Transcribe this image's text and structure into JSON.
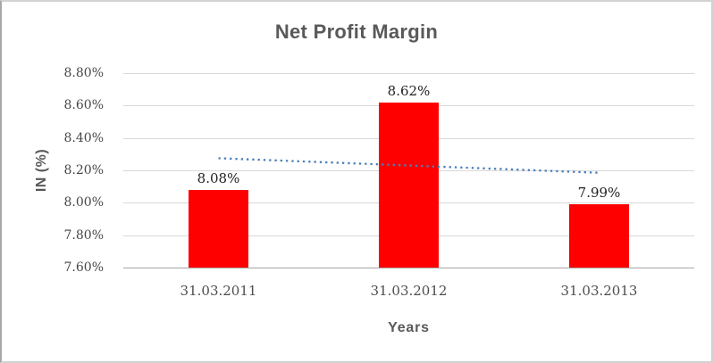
{
  "chart_data": {
    "type": "bar",
    "title": "Net Profit Margin",
    "xlabel": "Years",
    "ylabel": "IN (%)",
    "categories": [
      "31.03.2011",
      "31.03.2012",
      "31.03.2013"
    ],
    "values": [
      8.08,
      8.62,
      7.99
    ],
    "data_labels": [
      "8.08%",
      "8.62%",
      "7.99%"
    ],
    "y_ticks": [
      "8.80%",
      "8.60%",
      "8.40%",
      "8.20%",
      "8.00%",
      "7.80%",
      "7.60%"
    ],
    "ylim": [
      7.6,
      8.8
    ],
    "y_step": 0.2,
    "grid": true,
    "legend": "none",
    "series_color": "#ff0000",
    "trendline": {
      "type": "linear",
      "style": "dotted",
      "color": "#4a7ebb",
      "endpoint_values": [
        8.275,
        8.185
      ]
    },
    "colors": {
      "title_text": "#595959",
      "axis_title_text": "#595959",
      "tick_text": "#474747",
      "data_label_text": "#222222",
      "gridline": "#d9d9d9",
      "axis_line": "#a6a6a6",
      "chart_border": "#d2d2d2",
      "background": "#ffffff"
    }
  }
}
